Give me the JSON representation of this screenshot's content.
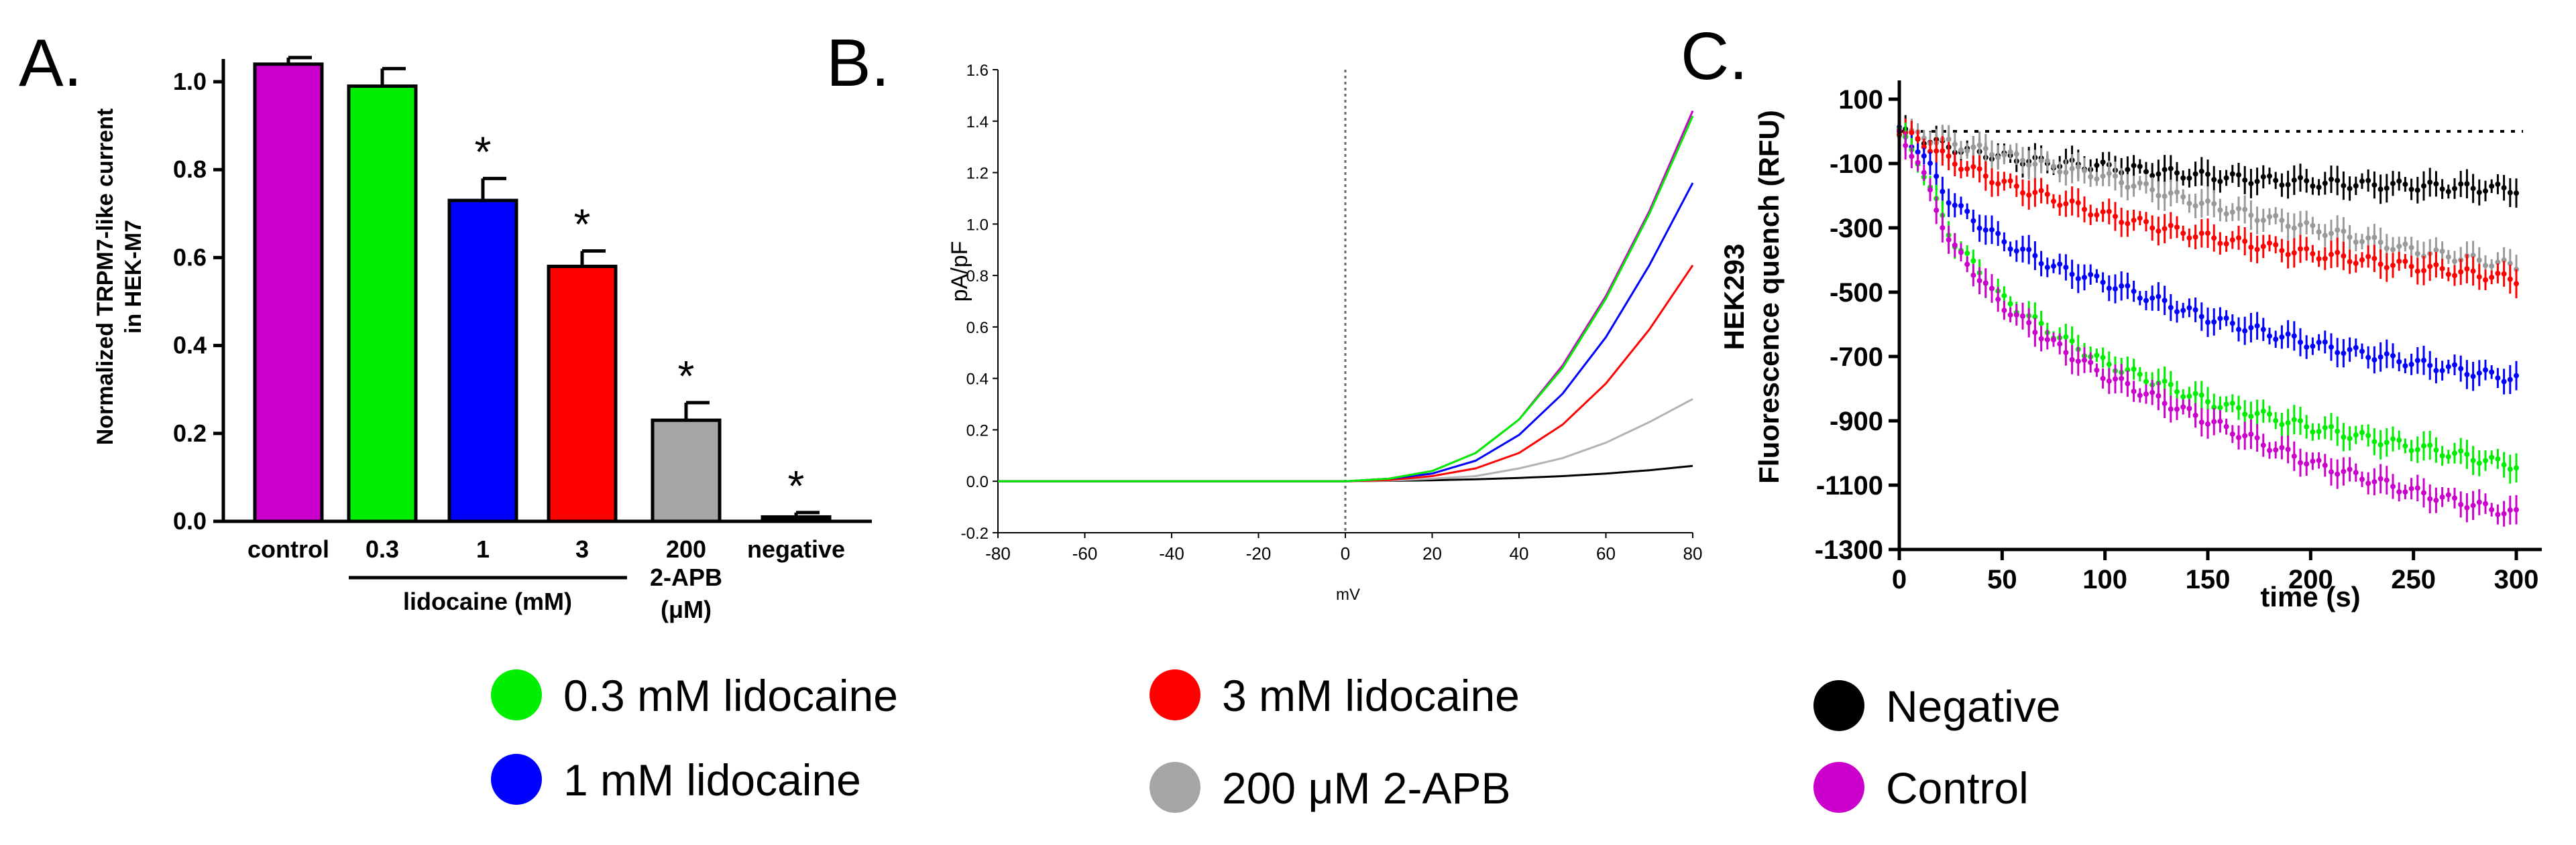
{
  "panel_labels": {
    "a": "A.",
    "b": "B.",
    "c": "C."
  },
  "chart_data": [
    {
      "type": "bar",
      "panel": "A.",
      "ylabel_line1": "Normalized TRPM7-like current",
      "ylabel_line2": "in HEK-M7",
      "ylim": [
        0,
        1.0
      ],
      "yticks": [
        "0.0",
        "0.2",
        "0.4",
        "0.6",
        "0.8",
        "1.0"
      ],
      "categories": [
        "control",
        "0.3",
        "1",
        "3",
        "200",
        "negative"
      ],
      "values": [
        1.04,
        0.99,
        0.73,
        0.58,
        0.23,
        0.01
      ],
      "errors": [
        0.015,
        0.04,
        0.05,
        0.035,
        0.04,
        0.01
      ],
      "colors": [
        "#cc00cc",
        "#00ee00",
        "#0000ff",
        "#ff0000",
        "#a6a6a6",
        "#000000"
      ],
      "significance": [
        "",
        "",
        "*",
        "*",
        "*",
        "*"
      ],
      "group_label": "lidocaine (mM)",
      "sublabel_line1": "2-APB",
      "sublabel_line2": "(μM)"
    },
    {
      "type": "line",
      "panel": "B.",
      "xlabel": "mV",
      "ylabel": "pA/pF",
      "xlim": [
        -80,
        80
      ],
      "ylim": [
        -0.2,
        1.6
      ],
      "xticks": [
        "-80",
        "-60",
        "-40",
        "-20",
        "0",
        "20",
        "40",
        "60",
        "80"
      ],
      "yticks": [
        "-0.2",
        "0.0",
        "0.2",
        "0.4",
        "0.6",
        "0.8",
        "1.0",
        "1.2",
        "1.4",
        "1.6"
      ],
      "series": [
        {
          "color": "#cc00cc",
          "x": [
            -80,
            0,
            10,
            20,
            30,
            40,
            50,
            60,
            70,
            80
          ],
          "y": [
            0,
            0,
            0.01,
            0.04,
            0.11,
            0.24,
            0.45,
            0.72,
            1.05,
            1.44
          ]
        },
        {
          "color": "#00ee00",
          "x": [
            -80,
            0,
            10,
            20,
            30,
            40,
            50,
            60,
            70,
            80
          ],
          "y": [
            0,
            0,
            0.01,
            0.04,
            0.11,
            0.24,
            0.44,
            0.71,
            1.04,
            1.42
          ]
        },
        {
          "color": "#0000ff",
          "x": [
            -80,
            0,
            10,
            20,
            30,
            40,
            50,
            60,
            70,
            80
          ],
          "y": [
            0,
            0,
            0.01,
            0.03,
            0.08,
            0.18,
            0.34,
            0.56,
            0.84,
            1.16
          ]
        },
        {
          "color": "#ff0000",
          "x": [
            -80,
            0,
            10,
            20,
            30,
            40,
            50,
            60,
            70,
            80
          ],
          "y": [
            0,
            0,
            0.005,
            0.02,
            0.05,
            0.11,
            0.22,
            0.38,
            0.59,
            0.84
          ]
        },
        {
          "color": "#b3b3b3",
          "x": [
            -80,
            0,
            10,
            20,
            30,
            40,
            50,
            60,
            70,
            80
          ],
          "y": [
            0,
            0,
            0.003,
            0.01,
            0.02,
            0.05,
            0.09,
            0.15,
            0.23,
            0.32
          ]
        },
        {
          "color": "#000000",
          "x": [
            -80,
            0,
            10,
            20,
            30,
            40,
            50,
            60,
            70,
            80
          ],
          "y": [
            0,
            0,
            0.002,
            0.004,
            0.008,
            0.013,
            0.02,
            0.03,
            0.043,
            0.06
          ]
        }
      ]
    },
    {
      "type": "scatter",
      "panel": "C.",
      "xlabel": "time (s)",
      "ylabel_outer": "HEK293",
      "ylabel": "Fluorescence quench (RFU)",
      "xlim": [
        0,
        300
      ],
      "ylim": [
        -1300,
        100
      ],
      "xticks": [
        "0",
        "50",
        "100",
        "150",
        "200",
        "250",
        "300"
      ],
      "yticks": [
        "100",
        "-100",
        "-300",
        "-500",
        "-700",
        "-900",
        "-1100",
        "-1300"
      ],
      "baseline_y": 0,
      "series": [
        {
          "color": "#000000",
          "x": [
            0,
            10,
            25,
            50,
            75,
            100,
            150,
            200,
            250,
            300
          ],
          "y": [
            0,
            -20,
            -50,
            -80,
            -100,
            -110,
            -140,
            -160,
            -170,
            -180
          ]
        },
        {
          "color": "#999999",
          "x": [
            0,
            10,
            25,
            50,
            75,
            100,
            150,
            200,
            250,
            300
          ],
          "y": [
            0,
            -15,
            -40,
            -70,
            -110,
            -140,
            -230,
            -300,
            -370,
            -420
          ]
        },
        {
          "color": "#ff0000",
          "x": [
            0,
            10,
            25,
            50,
            75,
            100,
            150,
            200,
            250,
            300
          ],
          "y": [
            0,
            -30,
            -90,
            -160,
            -210,
            -260,
            -330,
            -380,
            -420,
            -460
          ]
        },
        {
          "color": "#0000ff",
          "x": [
            0,
            10,
            25,
            50,
            75,
            100,
            150,
            200,
            250,
            300
          ],
          "y": [
            0,
            -60,
            -220,
            -340,
            -420,
            -470,
            -580,
            -660,
            -720,
            -770
          ]
        },
        {
          "color": "#00ee00",
          "x": [
            0,
            10,
            25,
            50,
            75,
            100,
            150,
            200,
            250,
            300
          ],
          "y": [
            0,
            -100,
            -330,
            -520,
            -630,
            -720,
            -840,
            -920,
            -980,
            -1040
          ]
        },
        {
          "color": "#cc00cc",
          "x": [
            0,
            10,
            25,
            50,
            75,
            100,
            150,
            200,
            250,
            300
          ],
          "y": [
            0,
            -110,
            -350,
            -540,
            -660,
            -760,
            -900,
            -1030,
            -1120,
            -1190
          ]
        }
      ]
    }
  ],
  "legend": [
    {
      "label": "0.3 mM lidocaine",
      "color": "#00ee00"
    },
    {
      "label": "3   mM lidocaine",
      "color": "#ff0000"
    },
    {
      "label": "Negative",
      "color": "#000000"
    },
    {
      "label": "1   mM lidocaine",
      "color": "#0000ff"
    },
    {
      "label": "200 μM 2-APB",
      "color": "#a6a6a6"
    },
    {
      "label": "Control",
      "color": "#cc00cc"
    }
  ]
}
